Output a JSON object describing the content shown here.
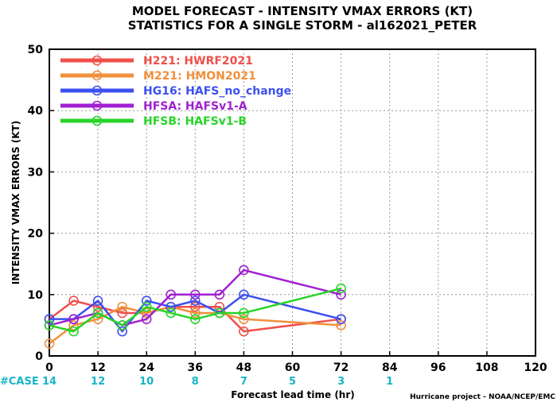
{
  "chart_data": {
    "type": "line",
    "title_line1": "MODEL FORECAST - INTENSITY VMAX ERRORS (KT)",
    "title_line2": "STATISTICS FOR A SINGLE STORM - al162021_PETER",
    "xlabel": "Forecast lead time (hr)",
    "ylabel": "INTENSITY VMAX ERRORS (KT)",
    "xlim": [
      0,
      120
    ],
    "ylim": [
      0,
      50
    ],
    "x_ticks": [
      0,
      12,
      24,
      36,
      48,
      60,
      72,
      84,
      96,
      108,
      120
    ],
    "y_ticks": [
      0,
      10,
      20,
      30,
      40,
      50
    ],
    "grid": true,
    "legend_position": "top-left",
    "series": [
      {
        "name": "H221: HWRF2021",
        "color": "#f0504a",
        "x": [
          0,
          6,
          12,
          18,
          24,
          30,
          36,
          42,
          48,
          72
        ],
        "y": [
          6,
          9,
          8,
          7,
          7,
          8,
          8,
          8,
          4,
          6
        ]
      },
      {
        "name": "M221: HMON2021",
        "color": "#f0903c",
        "x": [
          0,
          6,
          12,
          18,
          24,
          30,
          36,
          42,
          48,
          72
        ],
        "y": [
          2,
          5,
          6,
          8,
          7,
          8,
          7,
          7,
          6,
          5
        ]
      },
      {
        "name": "HG16: HAFS_no_change",
        "color": "#3c50f0",
        "x": [
          0,
          6,
          12,
          18,
          24,
          30,
          36,
          42,
          48,
          72
        ],
        "y": [
          6,
          6,
          9,
          4,
          9,
          8,
          9,
          7,
          10,
          6
        ]
      },
      {
        "name": "HFSA: HAFSv1-A",
        "color": "#a020d0",
        "x": [
          0,
          6,
          12,
          18,
          24,
          30,
          36,
          42,
          48,
          72
        ],
        "y": [
          5,
          6,
          7,
          5,
          6,
          10,
          10,
          10,
          14,
          10
        ]
      },
      {
        "name": "HFSB: HAFSv1-B",
        "color": "#28d428",
        "x": [
          0,
          6,
          12,
          18,
          24,
          30,
          36,
          42,
          48,
          72
        ],
        "y": [
          5,
          4,
          7,
          5,
          8,
          7,
          6,
          7,
          7,
          11
        ]
      }
    ],
    "case_label": "#CASE",
    "case_color": "#18b4c8",
    "case_counts": [
      {
        "x": 0,
        "count": "14"
      },
      {
        "x": 12,
        "count": "12"
      },
      {
        "x": 24,
        "count": "10"
      },
      {
        "x": 36,
        "count": "8"
      },
      {
        "x": 48,
        "count": "7"
      },
      {
        "x": 60,
        "count": "5"
      },
      {
        "x": 72,
        "count": "3"
      },
      {
        "x": 84,
        "count": "1"
      }
    ],
    "credit": "Hurricane project - NOAA/NCEP/EMC"
  }
}
